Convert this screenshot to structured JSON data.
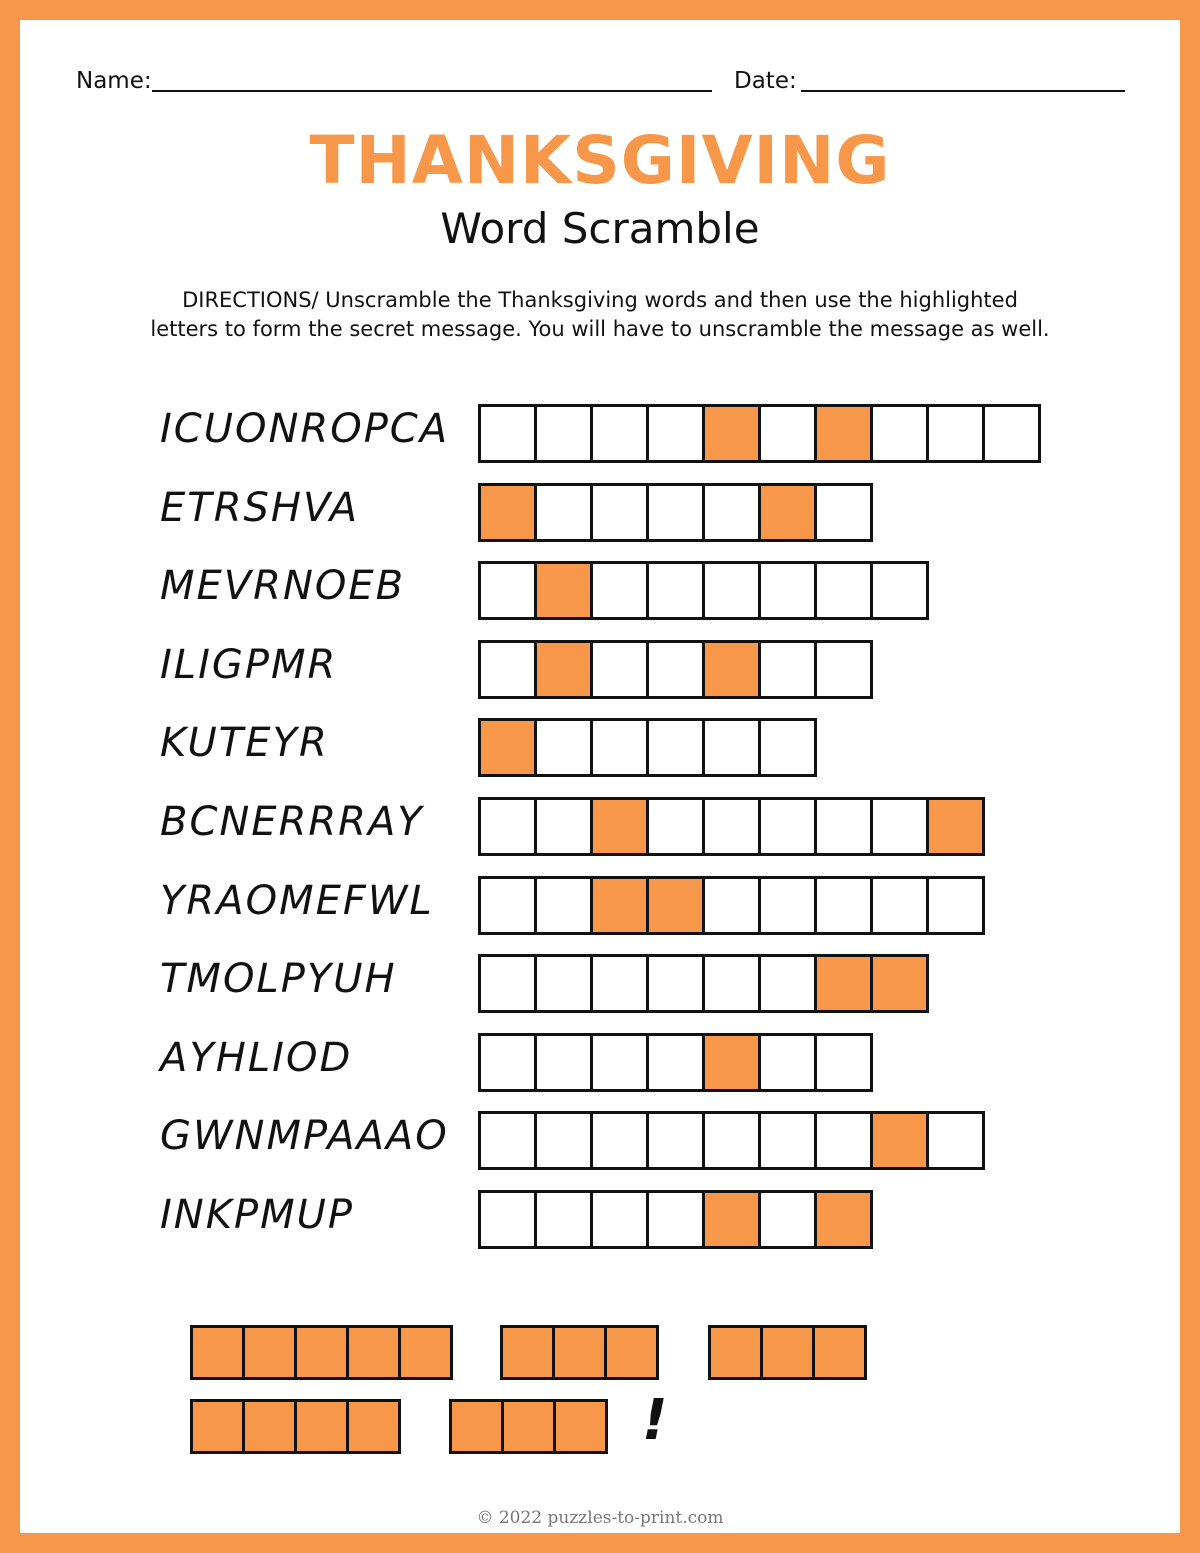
{
  "header": {
    "name_label": "Name:",
    "date_label": "Date:"
  },
  "title": "THANKSGIVING",
  "subtitle": "Word Scramble",
  "directions": [
    "DIRECTIONS/ Unscramble  the  Thanksgiving words and then use the highlighted",
    "letters to form the secret message.  You will have to unscramble the message as well."
  ],
  "accent_color": "#f7974a",
  "words": [
    {
      "scrambled": "ICUONROPCA",
      "length": 10,
      "highlighted": [
        4,
        6
      ]
    },
    {
      "scrambled": "ETRSHVA",
      "length": 7,
      "highlighted": [
        0,
        5
      ]
    },
    {
      "scrambled": "MEVRNOEB",
      "length": 8,
      "highlighted": [
        1
      ]
    },
    {
      "scrambled": "ILIGPMR",
      "length": 7,
      "highlighted": [
        1,
        4
      ]
    },
    {
      "scrambled": "KUTEYR",
      "length": 6,
      "highlighted": [
        0
      ]
    },
    {
      "scrambled": "BCNERRRAY",
      "length": 9,
      "highlighted": [
        2,
        8
      ]
    },
    {
      "scrambled": "YRAOMEFWL",
      "length": 9,
      "highlighted": [
        2,
        3
      ]
    },
    {
      "scrambled": "TMOLPYUH",
      "length": 8,
      "highlighted": [
        6,
        7
      ]
    },
    {
      "scrambled": "AYHLIOD",
      "length": 7,
      "highlighted": [
        4
      ]
    },
    {
      "scrambled": "GWNMPAAAO",
      "length": 9,
      "highlighted": [
        7
      ]
    },
    {
      "scrambled": "INKPMUP",
      "length": 7,
      "highlighted": [
        4,
        6
      ]
    }
  ],
  "secret_message": {
    "lines": [
      [
        5,
        3,
        3
      ],
      [
        4,
        3
      ]
    ],
    "ending": "!"
  },
  "footer": "© 2022 puzzles-to-print.com"
}
